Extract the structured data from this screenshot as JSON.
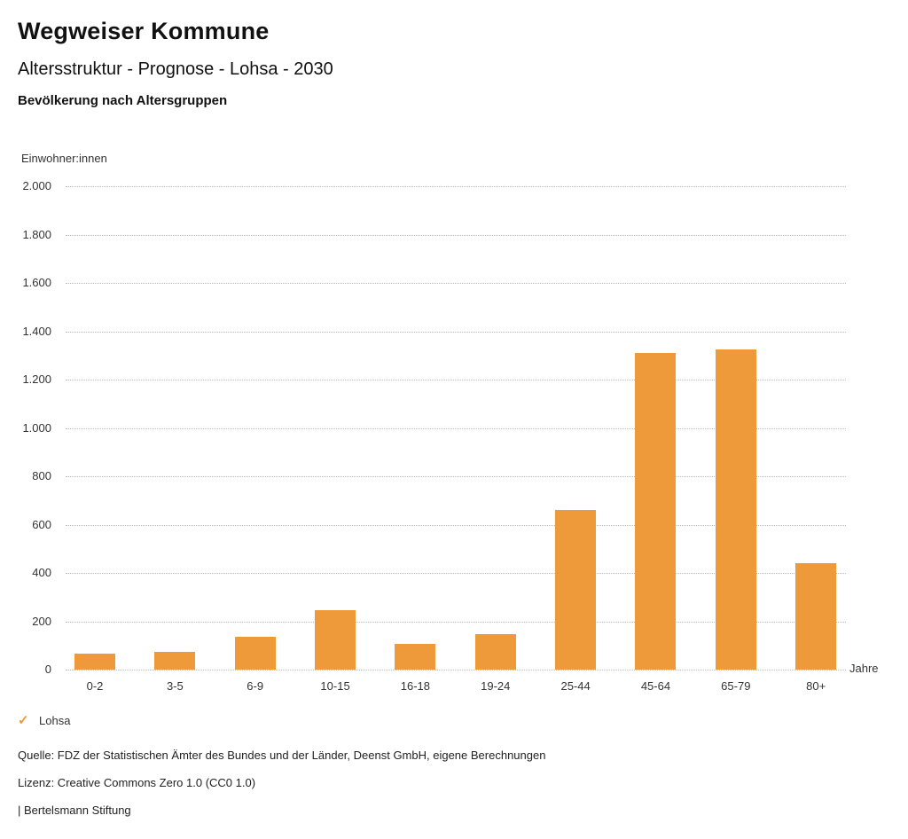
{
  "header": {
    "title": "Wegweiser Kommune",
    "subtitle": "Altersstruktur - Prognose - Lohsa - 2030",
    "chart_heading": "Bevölkerung nach Altersgruppen"
  },
  "chart_data": {
    "type": "bar",
    "title": "Bevölkerung nach Altersgruppen",
    "ylabel": "Einwohner:innen",
    "xlabel": "Jahre",
    "categories": [
      "0-2",
      "3-5",
      "6-9",
      "10-15",
      "16-18",
      "19-24",
      "25-44",
      "45-64",
      "65-79",
      "80+"
    ],
    "values": [
      65,
      75,
      135,
      245,
      105,
      145,
      660,
      1310,
      1325,
      440
    ],
    "series_name": "Lohsa",
    "ylim": [
      0,
      2000
    ],
    "ytick_step": 200,
    "ytick_labels": [
      "0",
      "200",
      "400",
      "600",
      "800",
      "1.000",
      "1.200",
      "1.400",
      "1.600",
      "1.800",
      "2.000"
    ],
    "grid": "horizontal-dotted",
    "legend_position": "bottom-left",
    "bar_color": "#EE9A3B"
  },
  "legend": {
    "check_icon": "✓",
    "label": "Lohsa"
  },
  "footer": {
    "source": "Quelle: FDZ der Statistischen Ämter des Bundes und der Länder, Deenst GmbH, eigene Berechnungen",
    "license": "Lizenz: Creative Commons Zero 1.0 (CC0 1.0)",
    "attribution": "| Bertelsmann Stiftung"
  },
  "colors": {
    "accent_orange": "#EE9A3B",
    "gridline": "#B9B9B9",
    "text": "#1A1A1A"
  }
}
